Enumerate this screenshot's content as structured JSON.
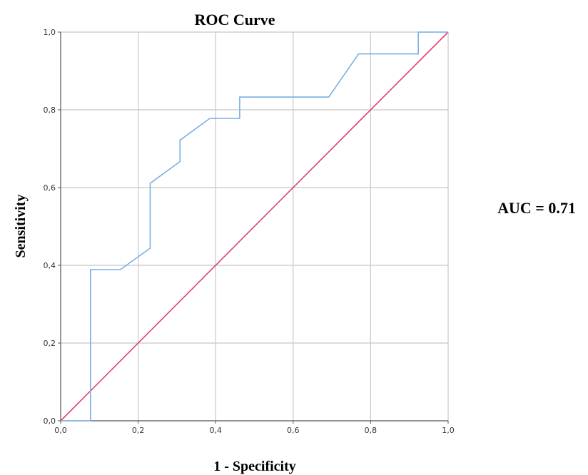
{
  "chart_data": {
    "type": "line",
    "title": "ROC Curve",
    "xlabel": "1 - Specificity",
    "ylabel": "Sensitivity",
    "xlim": [
      0,
      1
    ],
    "ylim": [
      0,
      1
    ],
    "x_ticks": [
      "0,0",
      "0,2",
      "0,4",
      "0,6",
      "0,8",
      "1,0"
    ],
    "y_ticks": [
      "0,0",
      "0,2",
      "0,4",
      "0,6",
      "0,8",
      "1,0"
    ],
    "grid": true,
    "annotation": "AUC = 0.71",
    "colors": {
      "roc": "#7aaee6",
      "reference": "#e0436c",
      "grid": "#c8c8c8",
      "axis": "#555555"
    },
    "series": [
      {
        "x": [
          0.0,
          0.077,
          0.077,
          0.154,
          0.231,
          0.231,
          0.308,
          0.308,
          0.385,
          0.462,
          0.462,
          0.692,
          0.769,
          0.923,
          0.923,
          1.0
        ],
        "y": [
          0.0,
          0.0,
          0.389,
          0.389,
          0.444,
          0.611,
          0.667,
          0.722,
          0.778,
          0.778,
          0.833,
          0.833,
          0.944,
          0.944,
          1.0,
          1.0
        ]
      },
      {
        "x": [
          0.0,
          1.0
        ],
        "y": [
          0.0,
          1.0
        ]
      }
    ]
  }
}
